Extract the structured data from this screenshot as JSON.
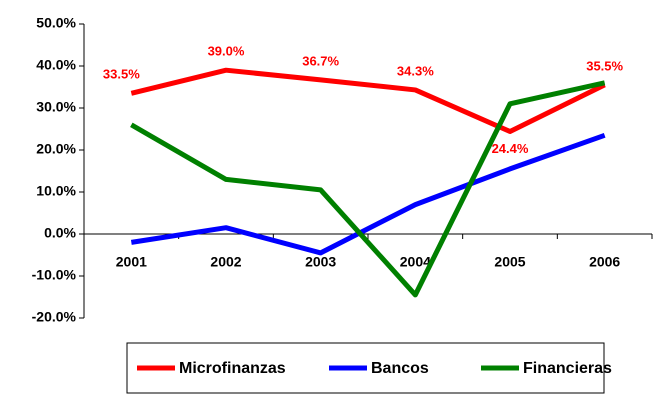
{
  "chart_data": {
    "type": "line",
    "categories": [
      "2001",
      "2002",
      "2003",
      "2004",
      "2005",
      "2006"
    ],
    "series": [
      {
        "name": "Microfinanzas",
        "color": "#ff0000",
        "values": [
          33.5,
          39.0,
          36.7,
          34.3,
          24.4,
          35.5
        ],
        "value_labels": [
          "33.5%",
          "39.0%",
          "36.7%",
          "34.3%",
          "24.4%",
          "35.5%"
        ]
      },
      {
        "name": "Bancos",
        "color": "#0000ff",
        "values": [
          -2,
          1.5,
          -4.5,
          7,
          15.5,
          23.5
        ]
      },
      {
        "name": "Financieras",
        "color": "#008000",
        "values": [
          26,
          13,
          10.5,
          -14.5,
          31,
          36
        ]
      }
    ],
    "ylim": [
      -20,
      50
    ],
    "yticks": [
      {
        "value": -20,
        "label": "-20.0%"
      },
      {
        "value": -10,
        "label": "-10.0%"
      },
      {
        "value": 0,
        "label": "0.0%"
      },
      {
        "value": 10,
        "label": "10.0%"
      },
      {
        "value": 20,
        "label": "20.0%"
      },
      {
        "value": 30,
        "label": "30.0%"
      },
      {
        "value": 40,
        "label": "40.0%"
      },
      {
        "value": 50,
        "label": "50.0%"
      }
    ],
    "grid": false,
    "legend": "bottom"
  }
}
